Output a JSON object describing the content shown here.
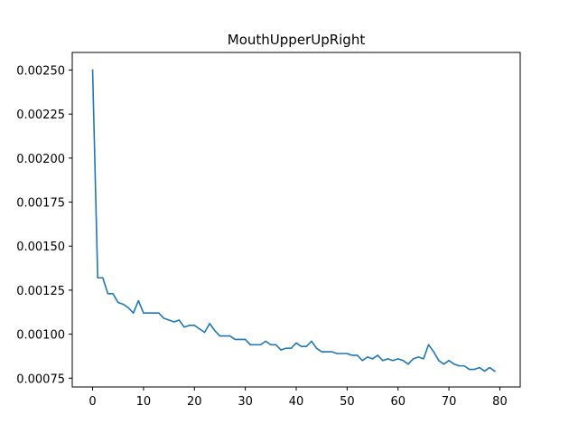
{
  "chart_data": {
    "type": "line",
    "title": "MouthUpperUpRight",
    "xlabel": "",
    "ylabel": "",
    "xlim": [
      -4,
      84
    ],
    "ylim": [
      0.0007,
      0.0026
    ],
    "grid": false,
    "legend": "none",
    "x_ticks": [
      0,
      10,
      20,
      30,
      40,
      50,
      60,
      70,
      80
    ],
    "x_tick_labels": [
      "0",
      "10",
      "20",
      "30",
      "40",
      "50",
      "60",
      "70",
      "80"
    ],
    "y_ticks": [
      0.00075,
      0.001,
      0.00125,
      0.0015,
      0.00175,
      0.002,
      0.00225,
      0.0025
    ],
    "y_tick_labels": [
      "0.00075",
      "0.00100",
      "0.00125",
      "0.00150",
      "0.00175",
      "0.00200",
      "0.00225",
      "0.00250"
    ],
    "series": [
      {
        "color": "#1f77b4",
        "x": [
          0,
          1,
          2,
          3,
          4,
          5,
          6,
          7,
          8,
          9,
          10,
          11,
          12,
          13,
          14,
          15,
          16,
          17,
          18,
          19,
          20,
          21,
          22,
          23,
          24,
          25,
          26,
          27,
          28,
          29,
          30,
          31,
          32,
          33,
          34,
          35,
          36,
          37,
          38,
          39,
          40,
          41,
          42,
          43,
          44,
          45,
          46,
          47,
          48,
          49,
          50,
          51,
          52,
          53,
          54,
          55,
          56,
          57,
          58,
          59,
          60,
          61,
          62,
          63,
          64,
          65,
          66,
          67,
          68,
          69,
          70,
          71,
          72,
          73,
          74,
          75,
          76,
          77,
          78,
          79
        ],
        "values": [
          0.0025,
          0.00132,
          0.00132,
          0.00123,
          0.00123,
          0.00118,
          0.00117,
          0.00115,
          0.00112,
          0.00119,
          0.00112,
          0.00112,
          0.00112,
          0.00112,
          0.00109,
          0.00108,
          0.00107,
          0.00108,
          0.00104,
          0.00105,
          0.00105,
          0.00103,
          0.00101,
          0.00106,
          0.00102,
          0.00099,
          0.00099,
          0.00099,
          0.00097,
          0.00097,
          0.00097,
          0.00094,
          0.00094,
          0.00094,
          0.00096,
          0.00094,
          0.00094,
          0.00091,
          0.00092,
          0.00092,
          0.00095,
          0.00093,
          0.00093,
          0.00096,
          0.00092,
          0.0009,
          0.0009,
          0.0009,
          0.00089,
          0.00089,
          0.00089,
          0.00088,
          0.00088,
          0.00085,
          0.00087,
          0.00086,
          0.00088,
          0.00085,
          0.00086,
          0.00085,
          0.00086,
          0.00085,
          0.00083,
          0.00086,
          0.00087,
          0.00086,
          0.00094,
          0.0009,
          0.00085,
          0.00083,
          0.00085,
          0.00083,
          0.00082,
          0.00082,
          0.0008,
          0.0008,
          0.00081,
          0.00079,
          0.00081,
          0.00079
        ]
      }
    ]
  }
}
